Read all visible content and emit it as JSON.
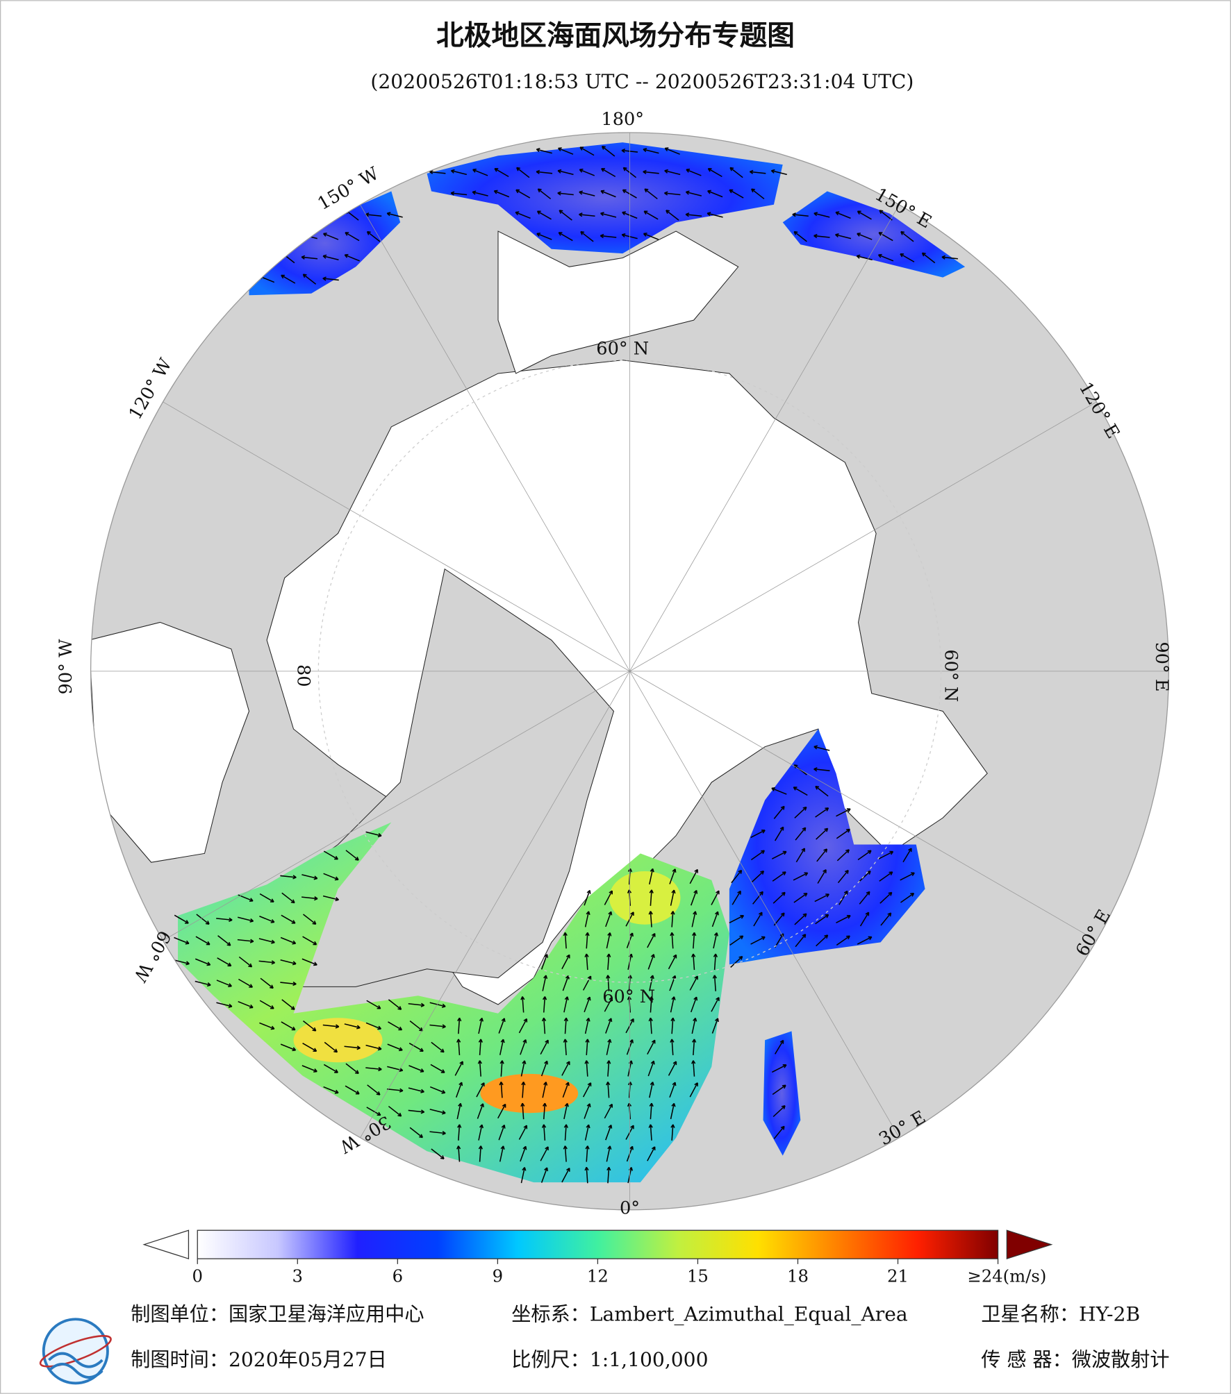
{
  "title": "北极地区海面风场分布专题图",
  "subtitle": "(20200526T01:18:53 UTC -- 20200526T23:31:04 UTC)",
  "map": {
    "graticule_labels": [
      "180°",
      "150° W",
      "120° W",
      "90° W",
      "60° W",
      "30° W",
      "0°",
      "30° E",
      "60° E",
      "90° E",
      "120° E",
      "150° E",
      "60° N",
      "60° N",
      "60° N",
      "80"
    ]
  },
  "colorbar": {
    "range": [
      0,
      24
    ],
    "ticks": [
      0,
      3,
      6,
      9,
      12,
      15,
      18,
      21,
      {
        "value": 24,
        "label": "≥24(m/s)"
      }
    ],
    "colors": [
      "#ffffff",
      "#c8c8ff",
      "#2020ff",
      "#0040ff",
      "#00c8ff",
      "#40f0a0",
      "#c0f040",
      "#ffe000",
      "#ff8000",
      "#ff2000",
      "#800000"
    ]
  },
  "footer": {
    "producer": "制图单位：国家卫星海洋应用中心",
    "coordinate_system": "坐标系：Lambert_Azimuthal_Equal_Area",
    "satellite": "卫星名称：HY-2B",
    "date": "制图时间：2020年05月27日",
    "scale": "比例尺：1:1,100,000",
    "sensor": "传 感 器：微波散射计"
  }
}
